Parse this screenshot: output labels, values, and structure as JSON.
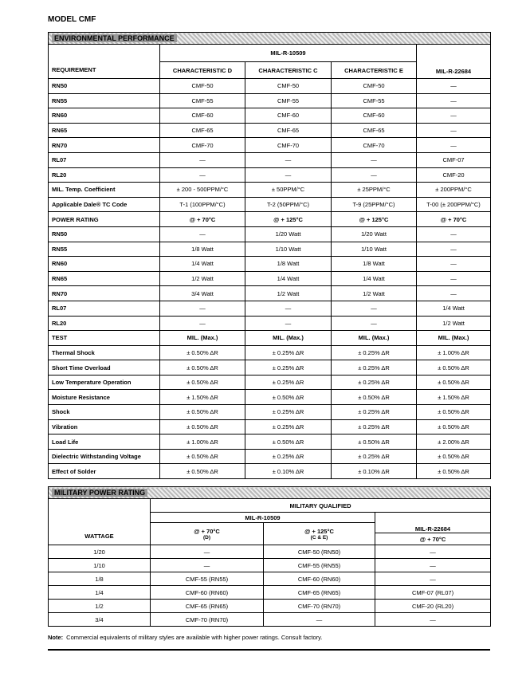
{
  "title": "MODEL CMF",
  "environmental": {
    "heading": "ENVIRONMENTAL PERFORMANCE",
    "group_header": "MIL-R-10509",
    "columns": [
      "REQUIREMENT",
      "CHARACTERISTIC D",
      "CHARACTERISTIC C",
      "CHARACTERISTIC E",
      "MIL-R-22684"
    ],
    "rows": [
      [
        "RN50",
        "CMF-50",
        "CMF-50",
        "CMF-50",
        "—"
      ],
      [
        "RN55",
        "CMF-55",
        "CMF-55",
        "CMF-55",
        "—"
      ],
      [
        "RN60",
        "CMF-60",
        "CMF-60",
        "CMF-60",
        "—"
      ],
      [
        "RN65",
        "CMF-65",
        "CMF-65",
        "CMF-65",
        "—"
      ],
      [
        "RN70",
        "CMF-70",
        "CMF-70",
        "CMF-70",
        "—"
      ],
      [
        "RL07",
        "—",
        "—",
        "—",
        "CMF-07"
      ],
      [
        "RL20",
        "—",
        "—",
        "—",
        "CMF-20"
      ],
      [
        "MIL. Temp. Coefficient",
        "± 200 - 500PPM/°C",
        "± 50PPM/°C",
        "± 25PPM/°C",
        "± 200PPM/°C"
      ],
      [
        "Applicable Dale® TC Code",
        "T-1 (100PPM/°C)",
        "T-2 (50PPM/°C)",
        "T-9 (25PPM/°C)",
        "T-00 (± 200PPM/°C)"
      ],
      [
        "POWER RATING",
        "@ + 70°C",
        "@ + 125°C",
        "@ + 125°C",
        "@ + 70°C"
      ],
      [
        "RN50",
        "—",
        "1/20 Watt",
        "1/20 Watt",
        "—"
      ],
      [
        "RN55",
        "1/8 Watt",
        "1/10 Watt",
        "1/10 Watt",
        "—"
      ],
      [
        "RN60",
        "1/4 Watt",
        "1/8 Watt",
        "1/8 Watt",
        "—"
      ],
      [
        "RN65",
        "1/2 Watt",
        "1/4 Watt",
        "1/4 Watt",
        "—"
      ],
      [
        "RN70",
        "3/4 Watt",
        "1/2 Watt",
        "1/2 Watt",
        "—"
      ],
      [
        "RL07",
        "—",
        "—",
        "—",
        "1/4 Watt"
      ],
      [
        "RL20",
        "—",
        "—",
        "—",
        "1/2 Watt"
      ],
      [
        "TEST",
        "MIL. (Max.)",
        "MIL. (Max.)",
        "MIL. (Max.)",
        "MIL. (Max.)"
      ],
      [
        "Thermal Shock",
        "± 0.50% ΔR",
        "± 0.25% ΔR",
        "± 0.25% ΔR",
        "± 1.00% ΔR"
      ],
      [
        "Short Time Overload",
        "± 0.50% ΔR",
        "± 0.25% ΔR",
        "± 0.25% ΔR",
        "± 0.50% ΔR"
      ],
      [
        "Low Temperature Operation",
        "± 0.50% ΔR",
        "± 0.25% ΔR",
        "± 0.25% ΔR",
        "± 0.50% ΔR"
      ],
      [
        "Moisture Resistance",
        "± 1.50% ΔR",
        "± 0.50% ΔR",
        "± 0.50% ΔR",
        "± 1.50% ΔR"
      ],
      [
        "Shock",
        "± 0.50% ΔR",
        "± 0.25% ΔR",
        "± 0.25% ΔR",
        "± 0.50% ΔR"
      ],
      [
        "Vibration",
        "± 0.50% ΔR",
        "± 0.25% ΔR",
        "± 0.25% ΔR",
        "± 0.50% ΔR"
      ],
      [
        "Load Life",
        "± 1.00% ΔR",
        "± 0.50% ΔR",
        "± 0.50% ΔR",
        "± 2.00% ΔR"
      ],
      [
        "Dielectric Withstanding Voltage",
        "± 0.50% ΔR",
        "± 0.25% ΔR",
        "± 0.25% ΔR",
        "± 0.50% ΔR"
      ],
      [
        "Effect of Solder",
        "± 0.50% ΔR",
        "± 0.10% ΔR",
        "± 0.10% ΔR",
        "± 0.50% ΔR"
      ]
    ]
  },
  "military": {
    "heading": "MILITARY POWER RATING",
    "group_header": "MILITARY QUALIFIED",
    "sub_header": "MIL-R-10509",
    "wattage_header": "WATTAGE",
    "col_d": {
      "label": "@ + 70°C",
      "note": "(D)"
    },
    "col_ce": {
      "label": "@ + 125°C",
      "note": "(C & E)"
    },
    "col_rl": {
      "label": "MIL-R-22684",
      "sub": "@ + 70°C"
    },
    "rows": [
      [
        "1/20",
        "—",
        "CMF-50 (RN50)",
        "—"
      ],
      [
        "1/10",
        "—",
        "CMF-55 (RN55)",
        "—"
      ],
      [
        "1/8",
        "CMF-55 (RN55)",
        "CMF-60 (RN60)",
        "—"
      ],
      [
        "1/4",
        "CMF-60 (RN60)",
        "CMF-65 (RN65)",
        "CMF-07 (RL07)"
      ],
      [
        "1/2",
        "CMF-65 (RN65)",
        "CMF-70 (RN70)",
        "CMF-20 (RL20)"
      ],
      [
        "3/4",
        "CMF-70 (RN70)",
        "—",
        "—"
      ]
    ]
  },
  "note": {
    "label": "Note:",
    "text": "Commercial equivalents of military styles are available with higher power ratings.  Consult factory."
  }
}
